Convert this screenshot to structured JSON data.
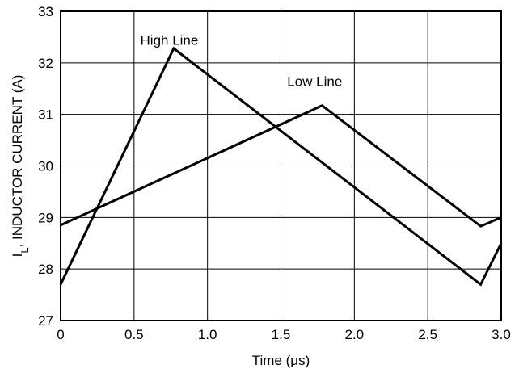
{
  "chart_data": {
    "type": "line",
    "title": "",
    "xlabel": "Time (μs)",
    "ylabel": {
      "main": "I",
      "sub": "L",
      "rest": ", INDUCTOR CURRENT (A)"
    },
    "xlim": [
      0,
      3.0
    ],
    "ylim": [
      27,
      33
    ],
    "x_ticks": [
      0,
      0.5,
      1.0,
      1.5,
      2.0,
      2.5,
      3.0
    ],
    "x_tick_labels": [
      "0",
      "0.5",
      "1.0",
      "1.5",
      "2.0",
      "2.5",
      "3.0"
    ],
    "y_ticks": [
      27,
      28,
      29,
      30,
      31,
      32,
      33
    ],
    "y_tick_labels": [
      "27",
      "28",
      "29",
      "30",
      "31",
      "32",
      "33"
    ],
    "grid": true,
    "legend": "none",
    "series": [
      {
        "name": "High Line",
        "label_at": [
          0.74,
          32.35
        ],
        "points": [
          [
            0,
            27.7
          ],
          [
            0.77,
            32.28
          ],
          [
            2.86,
            27.7
          ],
          [
            3.0,
            28.5
          ]
        ]
      },
      {
        "name": "Low Line",
        "label_at": [
          1.73,
          31.55
        ],
        "points": [
          [
            0,
            28.85
          ],
          [
            1.78,
            31.17
          ],
          [
            2.86,
            28.83
          ],
          [
            3.0,
            29.0
          ]
        ]
      }
    ]
  }
}
